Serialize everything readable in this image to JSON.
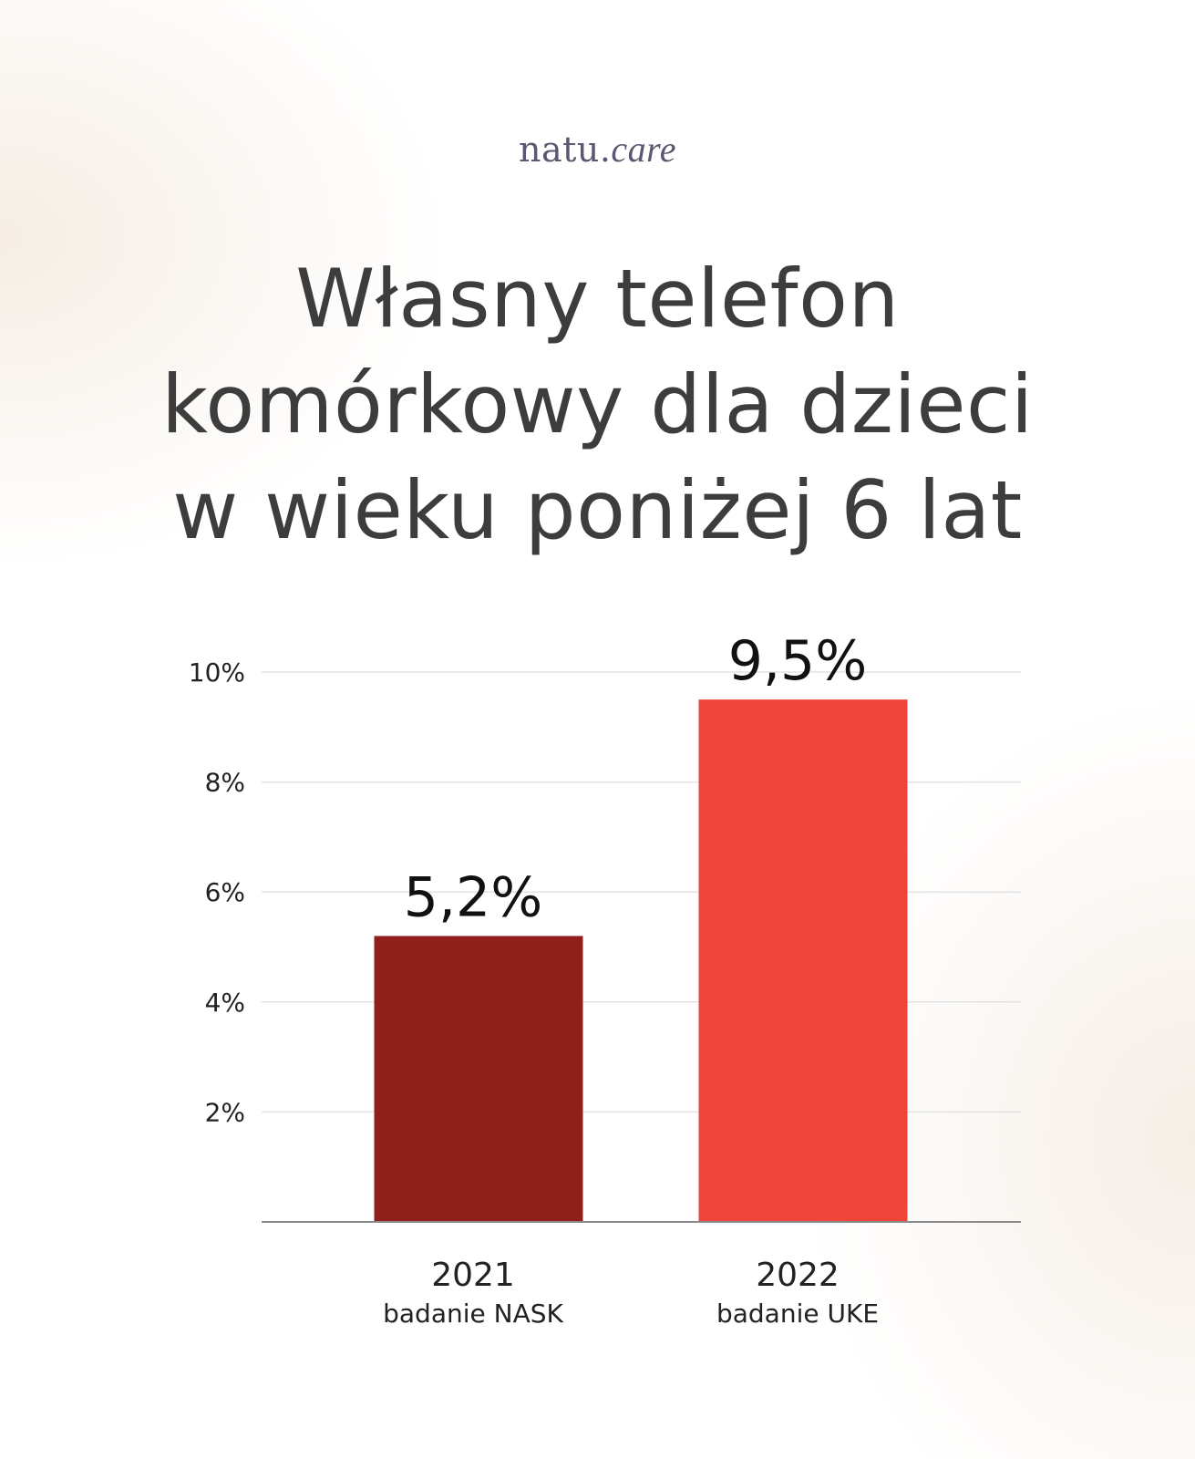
{
  "brand": {
    "name_main": "natu.",
    "name_accent": "care"
  },
  "title_lines": [
    "Własny telefon",
    "komórkowy dla dzieci",
    "w wieku poniżej 6 lat"
  ],
  "chart_data": {
    "type": "bar",
    "title": "Własny telefon komórkowy dla dzieci w wieku poniżej 6 lat",
    "categories": [
      "2021",
      "2022"
    ],
    "category_sublabels": [
      "badanie NASK",
      "badanie UKE"
    ],
    "values": [
      5.2,
      9.5
    ],
    "value_labels": [
      "5,2%",
      "9,5%"
    ],
    "bar_colors": [
      "#8e1f1a",
      "#ee453b"
    ],
    "ylim": [
      0,
      10
    ],
    "yticks": [
      2,
      4,
      6,
      8,
      10
    ],
    "ytick_labels": [
      "2%",
      "4%",
      "6%",
      "8%",
      "10%"
    ],
    "grid": true,
    "legend": "none"
  }
}
